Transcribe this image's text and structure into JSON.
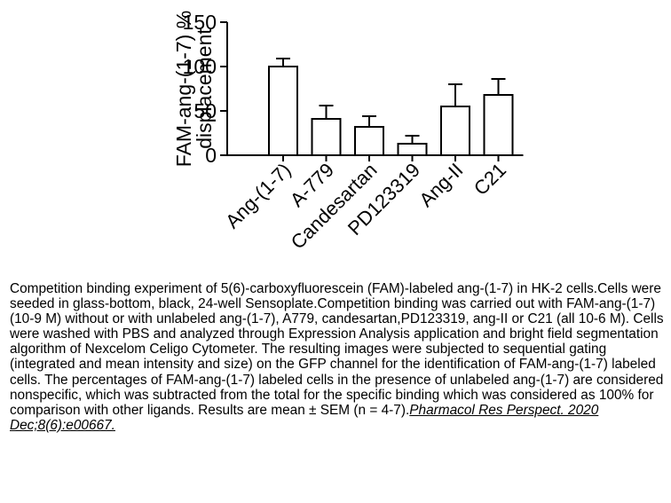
{
  "chart_data": {
    "type": "bar",
    "ylabel_line1": "FAM-ang-(1-7) %",
    "ylabel_line2": "displacement",
    "ylim": [
      0,
      150
    ],
    "yticks": [
      0,
      50,
      100,
      150
    ],
    "categories": [
      "Ang-(1-7)",
      "A-779",
      "Candesartan",
      "PD123319",
      "Ang-II",
      "C21"
    ],
    "values": [
      100,
      41,
      32,
      13,
      55,
      68
    ],
    "errors": [
      9,
      15,
      12,
      9,
      25,
      18
    ],
    "bar_fill": "#ffffff",
    "bar_stroke": "#000000",
    "grid": false
  },
  "caption": {
    "body": "Competition binding experiment of 5(6)-carboxyfluorescein (FAM)-labeled ang-(1-7) in HK-2 cells.Cells were seeded in glass-bottom, black, 24-well Sensoplate.Competition binding was carried out with FAM-ang-(1-7) (10-9 M) without or with unlabeled ang-(1-7), A779, candesartan,PD123319, ang-II or C21 (all 10-6 M). Cells were washed with PBS and analyzed through Expression Analysis application and bright field segmentation algorithm of Nexcelom Celigo Cytometer. The resulting images were subjected to sequential gating (integrated and mean intensity and size) on the GFP channel for the identification of FAM-ang-(1-7) labeled cells. The percentages of FAM-ang-(1-7) labeled cells in the presence of unlabeled ang-(1-7) are considered nonspecific, which was subtracted from the total for the specific binding which was considered as 100% for comparison with other ligands. Results are mean ± SEM (n = 4-7).",
    "citation": "Pharmacol Res Perspect. 2020 Dec;8(6):e00667."
  }
}
